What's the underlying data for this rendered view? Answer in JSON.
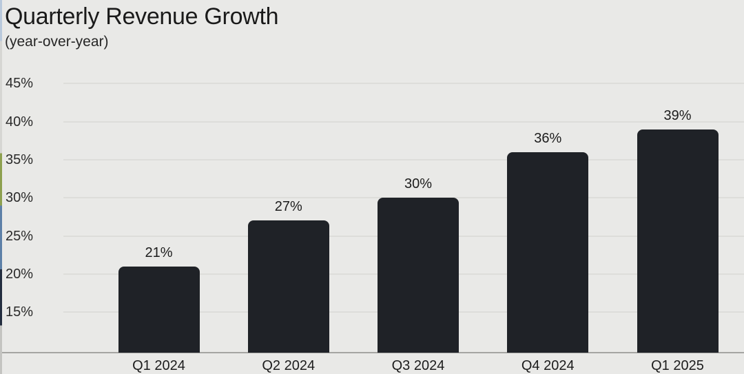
{
  "chart_data": {
    "type": "bar",
    "title": "Quarterly Revenue Growth",
    "subtitle": "(year-over-year)",
    "categories": [
      "Q1 2024",
      "Q2 2024",
      "Q3 2024",
      "Q4 2024",
      "Q1 2025"
    ],
    "values": [
      21,
      27,
      30,
      36,
      39
    ],
    "value_labels": [
      "21%",
      "27%",
      "30%",
      "36%",
      "39%"
    ],
    "yticks": [
      15,
      20,
      25,
      30,
      35,
      40,
      45
    ],
    "ytick_labels": [
      "15%",
      "20%",
      "25%",
      "30%",
      "35%",
      "40%",
      "45%"
    ],
    "ylim": [
      9.7,
      47
    ],
    "xlabel": "",
    "ylabel": "",
    "legend_position": "none",
    "grid": "horizontal",
    "bar_color": "#1f2227",
    "background_color": "#e9e9e7",
    "gridline_color": "#dddddA",
    "axis_line_color": "#a5a5a2",
    "text_color": "#1a1a1a"
  },
  "edge_artifact": {
    "stops": [
      {
        "color": "#b9c9dc",
        "from": 0,
        "to": 11
      },
      {
        "color": "#d6d6d3",
        "from": 11,
        "to": 41
      },
      {
        "color": "#8da04f",
        "from": 41,
        "to": 55
      },
      {
        "color": "#5d80a8",
        "from": 55,
        "to": 72
      },
      {
        "color": "#232d3f",
        "from": 72,
        "to": 87
      },
      {
        "color": "#c4c4c1",
        "from": 87,
        "to": 100
      }
    ]
  }
}
